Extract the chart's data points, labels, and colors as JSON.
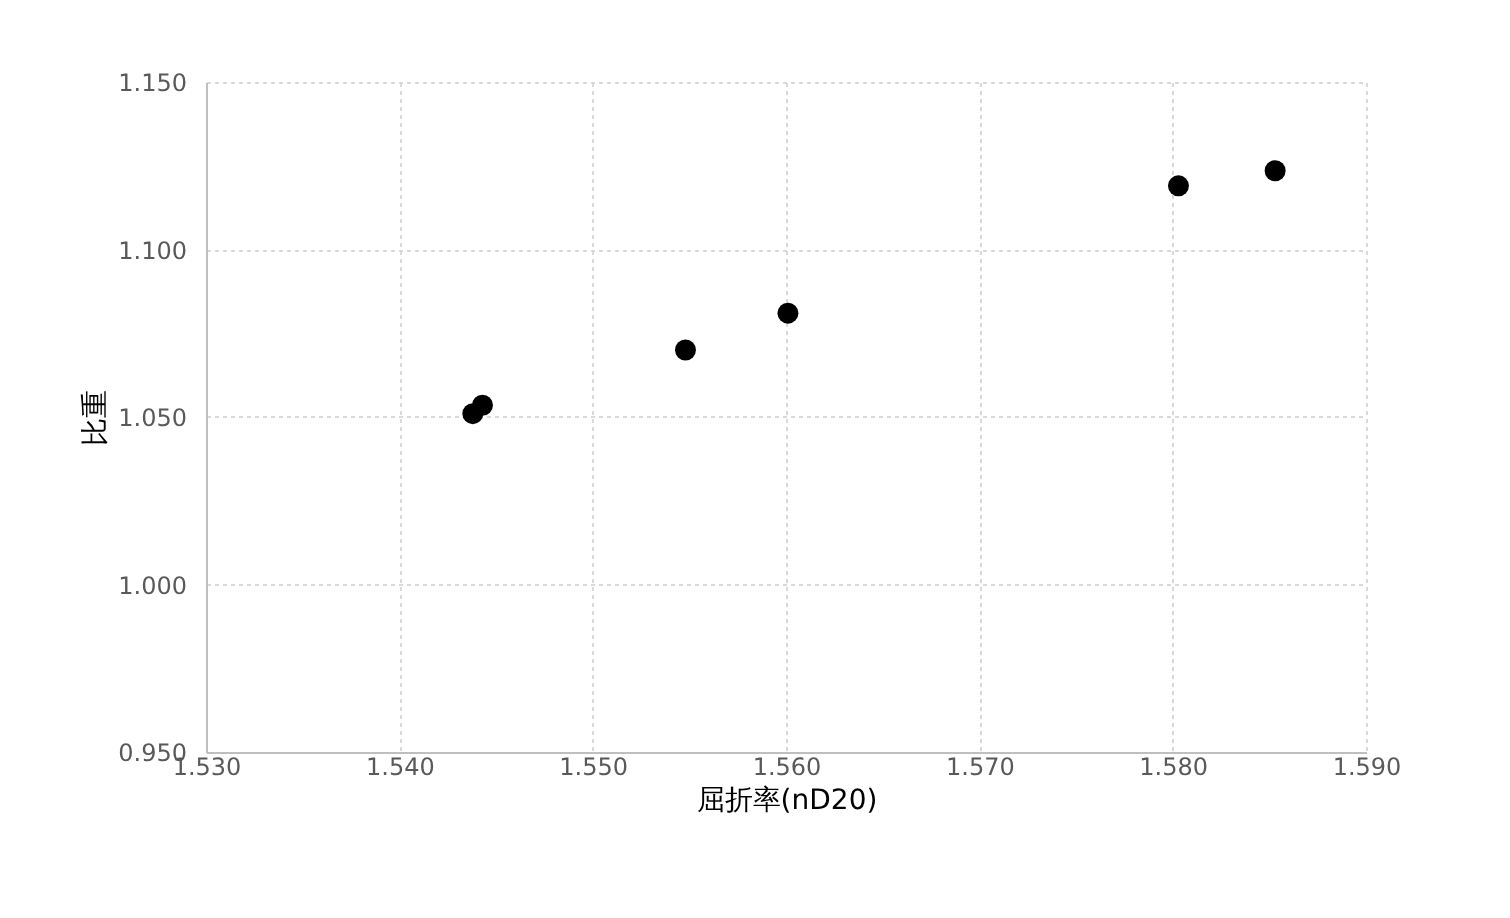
{
  "chart_data": {
    "type": "scatter",
    "xlabel": "屈折率(nD20)",
    "ylabel": "比重",
    "x": [
      1.5438,
      1.5443,
      1.5548,
      1.5601,
      1.5803,
      1.5853
    ],
    "values": [
      1.051,
      1.0535,
      1.07,
      1.081,
      1.119,
      1.1235
    ],
    "color": "#000000",
    "marker": "circle",
    "xlim": [
      1.53,
      1.59
    ],
    "xticks": [
      {
        "value": 1.53,
        "label": "1.530"
      },
      {
        "value": 1.54,
        "label": "1.540"
      },
      {
        "value": 1.55,
        "label": "1.550"
      },
      {
        "value": 1.56,
        "label": "1.560"
      },
      {
        "value": 1.57,
        "label": "1.570"
      },
      {
        "value": 1.58,
        "label": "1.580"
      },
      {
        "value": 1.59,
        "label": "1.590"
      }
    ],
    "ylim": [
      0.95,
      1.15
    ],
    "yticks": [
      {
        "value": 0.95,
        "label": "0.950"
      },
      {
        "value": 1.0,
        "label": "1.000"
      },
      {
        "value": 1.05,
        "label": "1.050"
      },
      {
        "value": 1.1,
        "label": "1.100"
      },
      {
        "value": 1.15,
        "label": "1.150"
      }
    ],
    "grid": true
  }
}
